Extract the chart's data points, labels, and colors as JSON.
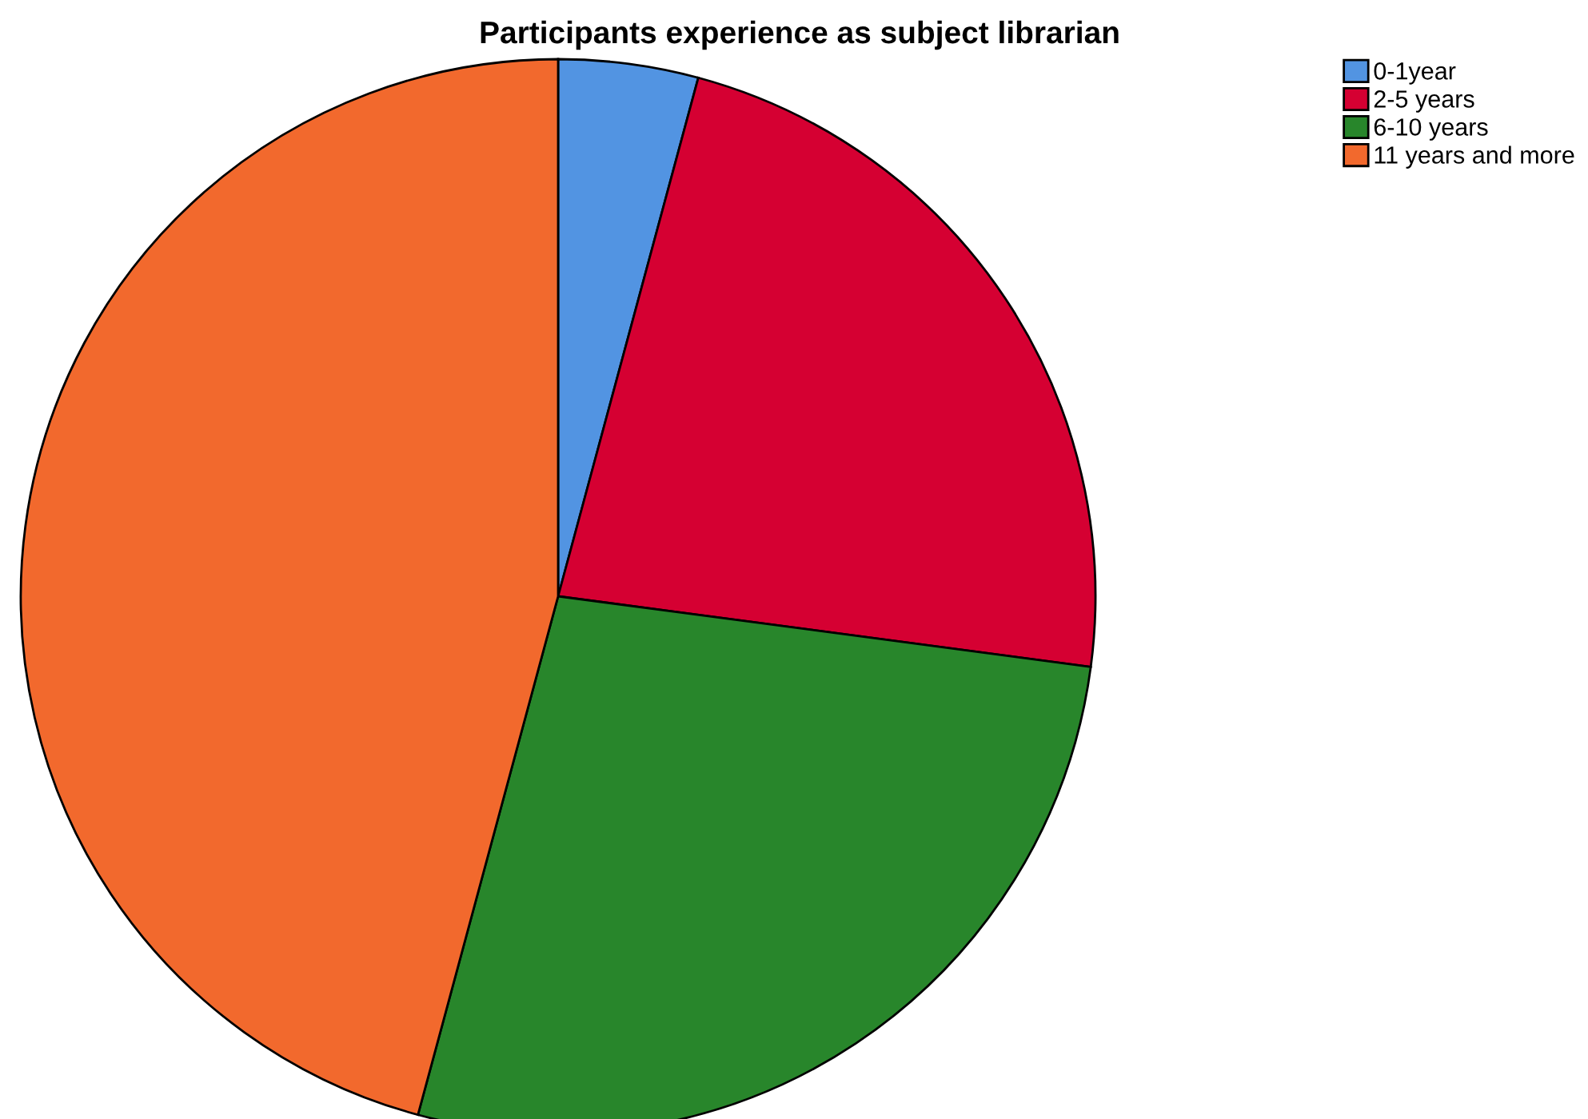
{
  "chart_data": {
    "type": "pie",
    "title": "Participants experience as subject librarian",
    "categories": [
      "0-1year",
      "2-5 years",
      "6-10 years",
      "11 years and more"
    ],
    "values": [
      4.2,
      22.9,
      27.1,
      45.8
    ],
    "colors": [
      "#5294e2",
      "#d50032",
      "#28862b",
      "#f2692d"
    ],
    "legend": "top right"
  }
}
